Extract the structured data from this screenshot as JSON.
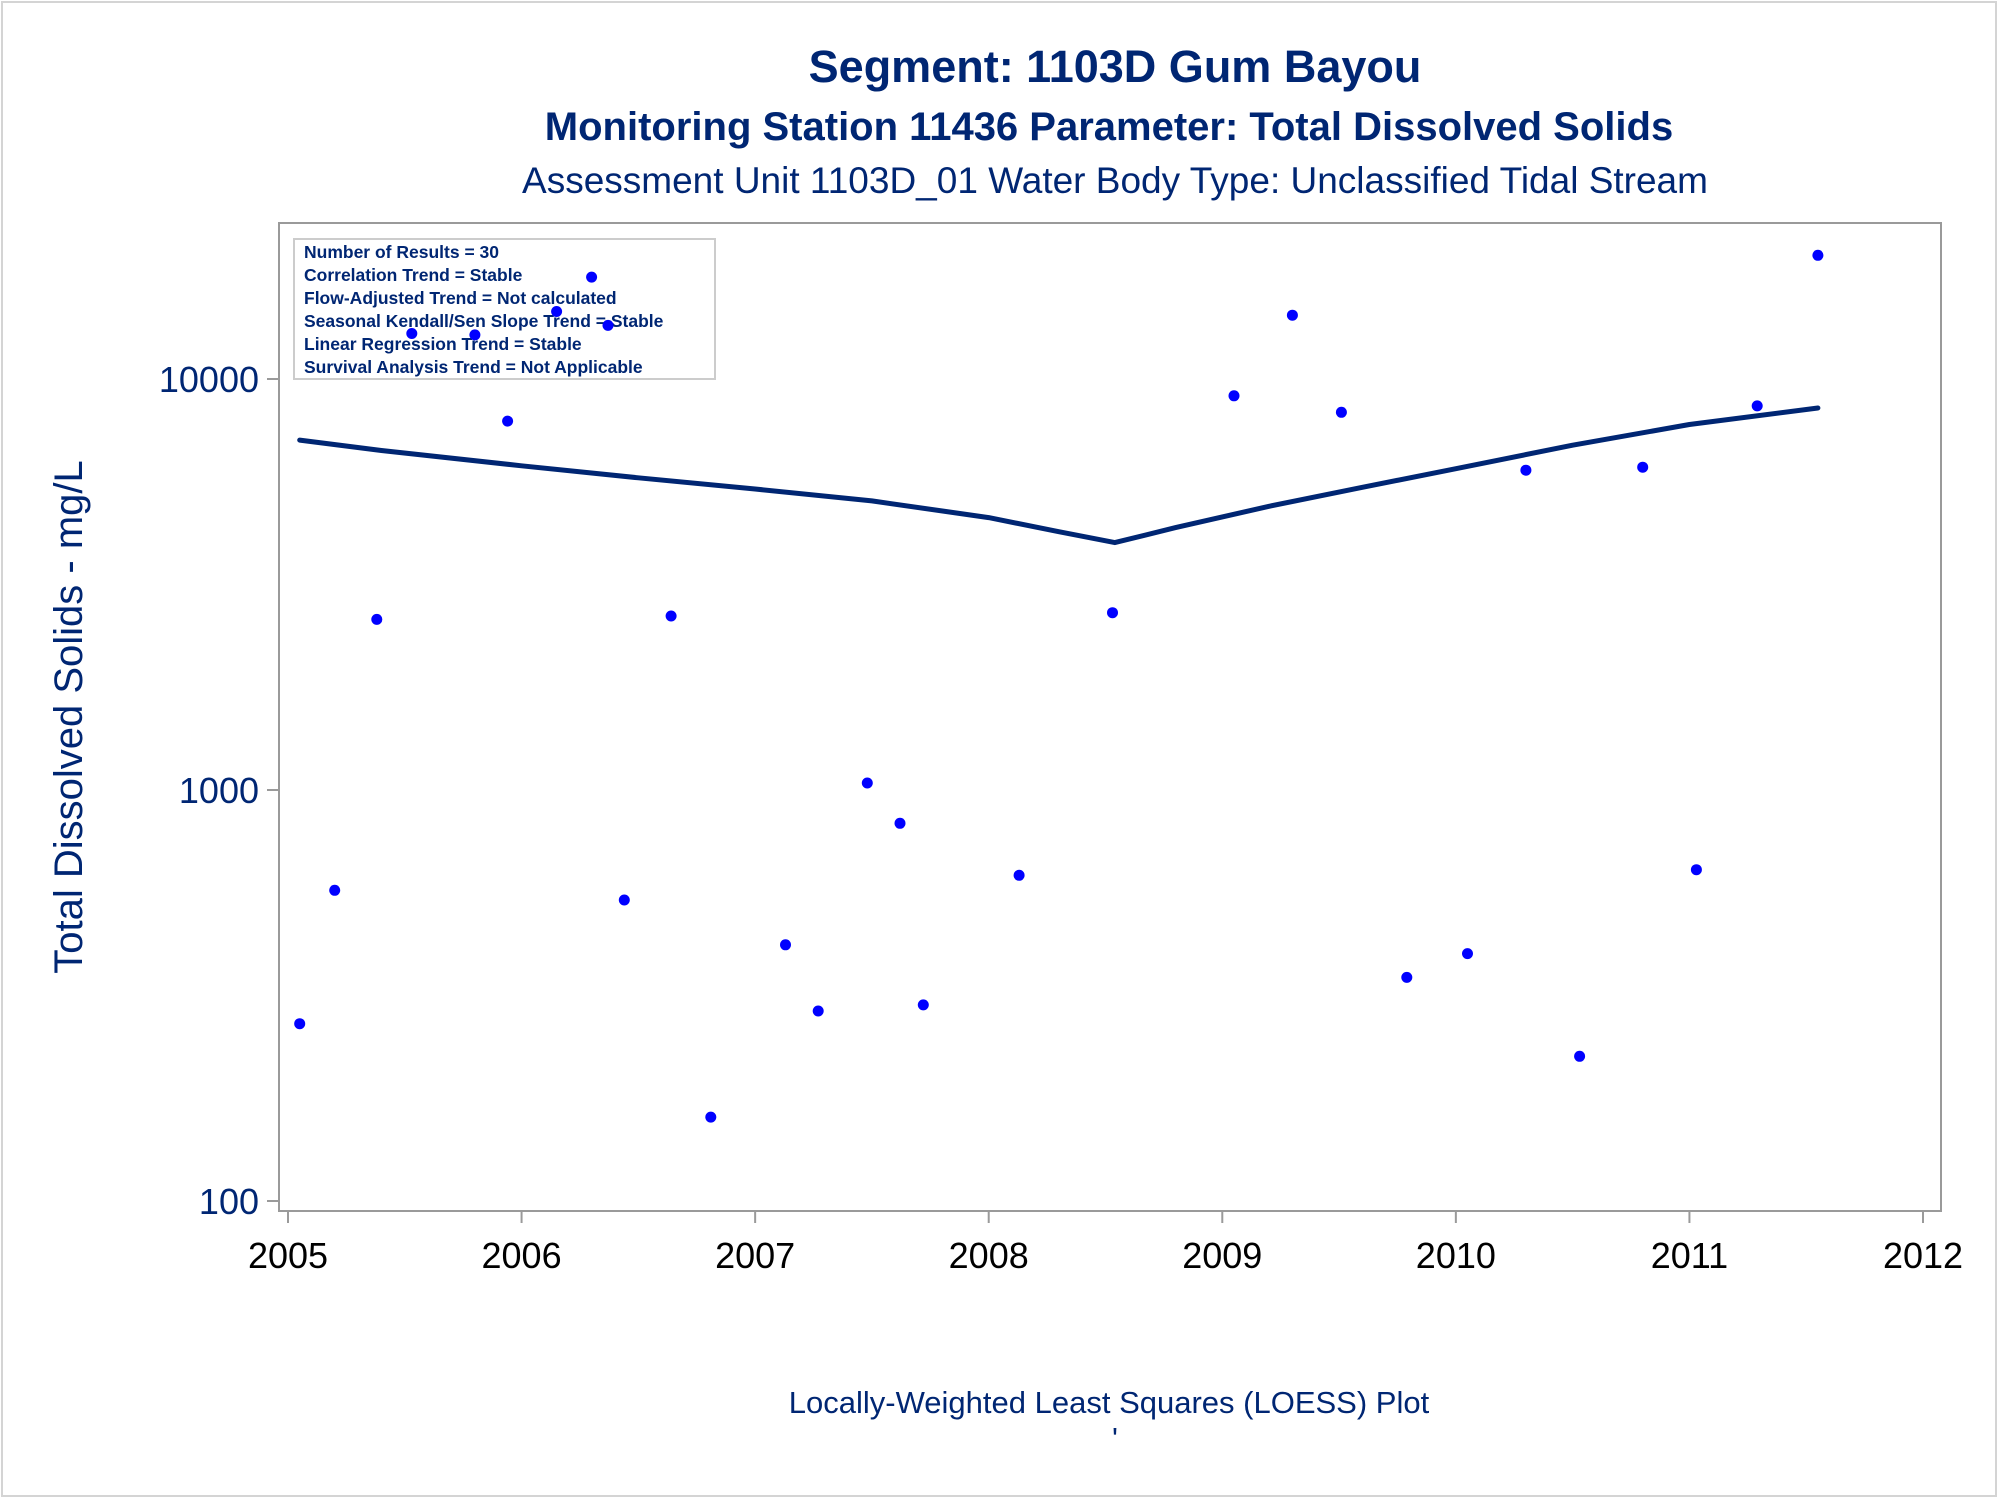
{
  "chart_data": {
    "type": "scatter",
    "title": "Segment: 1103D  Gum Bayou",
    "subtitle": "Monitoring Station 11436 Parameter: Total Dissolved Solids",
    "subtitle2": "Assessment Unit 1103D_01   Water Body Type: Unclassified Tidal Stream",
    "xlabel": "",
    "ylabel": "Total Dissolved Solids - mg/L",
    "footnote": "Locally-Weighted Least Squares (LOESS) Plot",
    "footnote_mark": "'",
    "y_scale": "log",
    "ylim": [
      95,
      22000
    ],
    "xlim": [
      2005.0,
      2012.0
    ],
    "x_ticks": [
      2005,
      2006,
      2007,
      2008,
      2009,
      2010,
      2011,
      2012
    ],
    "y_ticks": [
      100,
      1000,
      10000
    ],
    "grid": false,
    "colors": {
      "points": "#0000ff",
      "line": "#002673",
      "text": "#002673",
      "axis": "#9a9a9a"
    },
    "info_box": {
      "placement": "top-left",
      "lines": [
        "Number of Results = 30",
        "Correlation Trend = Stable",
        "Flow-Adjusted Trend = Not calculated",
        "Seasonal Kendall/Sen Slope Trend = Stable",
        "Linear Regression Trend = Stable",
        "Survival Analysis Trend = Not Applicable"
      ]
    },
    "series": [
      {
        "kind": "points",
        "x": [
          2005.05,
          2005.2,
          2005.38,
          2005.53,
          2005.8,
          2005.94,
          2006.15,
          2006.3,
          2006.37,
          2006.44,
          2006.64,
          2006.81,
          2007.13,
          2007.27,
          2007.48,
          2007.62,
          2007.72,
          2008.13,
          2008.53,
          2009.05,
          2009.3,
          2009.51,
          2009.79,
          2010.05,
          2010.3,
          2010.53,
          2010.8,
          2011.03,
          2011.29,
          2011.55
        ],
        "y": [
          270,
          570,
          2600,
          12900,
          12800,
          7900,
          14600,
          17700,
          13500,
          540,
          2650,
          160,
          420,
          290,
          1040,
          830,
          300,
          620,
          2700,
          9100,
          14300,
          8300,
          350,
          400,
          6000,
          225,
          6100,
          640,
          8600,
          20000
        ]
      },
      {
        "kind": "line",
        "x": [
          2005.05,
          2005.4,
          2006.0,
          2006.5,
          2007.0,
          2007.5,
          2008.0,
          2008.3,
          2008.54,
          2008.8,
          2009.2,
          2009.6,
          2010.0,
          2010.5,
          2011.0,
          2011.55
        ],
        "y": [
          7100,
          6700,
          6150,
          5750,
          5400,
          5050,
          4600,
          4250,
          4000,
          4350,
          4900,
          5450,
          6050,
          6900,
          7750,
          8500
        ]
      }
    ]
  }
}
